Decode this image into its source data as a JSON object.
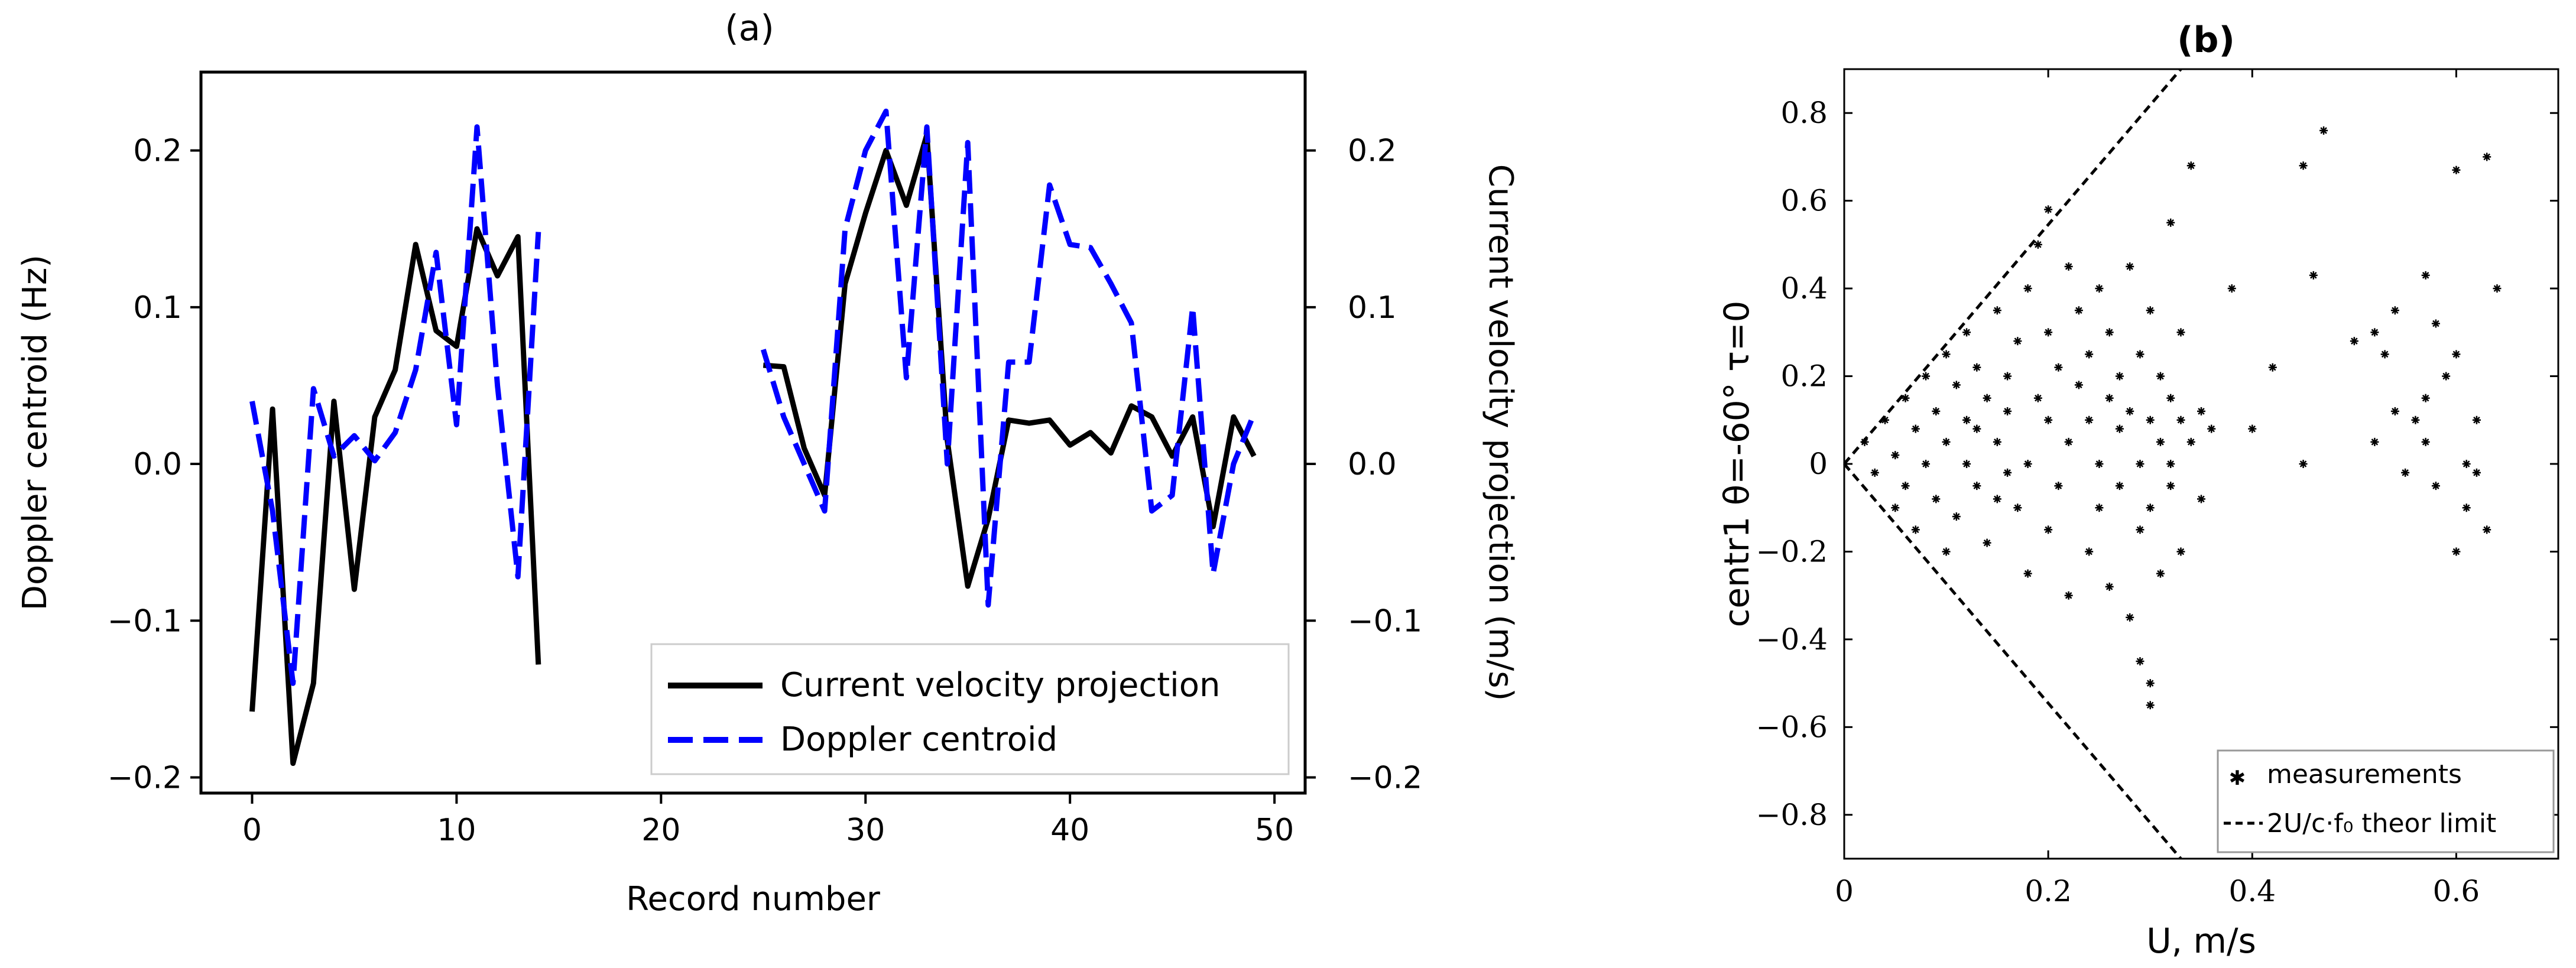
{
  "chart_data": [
    {
      "type": "line",
      "title": "(a)",
      "xlabel": "Record number",
      "ylabel": "Doppler centroid (Hz)",
      "ylabel_right": "Current velocity projection (m/s)",
      "xlim": [
        -2.5,
        51.5
      ],
      "ylim": [
        -0.21,
        0.25
      ],
      "ylim_right": [
        -0.21,
        0.25
      ],
      "x_ticks": [
        0,
        10,
        20,
        30,
        40,
        50
      ],
      "x_tick_labels": [
        "0",
        "10",
        "20",
        "30",
        "40",
        "50"
      ],
      "y_ticks": [
        -0.2,
        -0.1,
        0.0,
        0.1,
        0.2
      ],
      "y_tick_labels": [
        "−0.2",
        "−0.1",
        "0.0",
        "0.1",
        "0.2"
      ],
      "y_tick_labels_right": [
        "−0.2",
        "−0.1",
        "0.0",
        "0.1",
        "0.2"
      ],
      "grid": false,
      "legend_position": "lower-right",
      "series": [
        {
          "name": "Current velocity projection",
          "color": "#000000",
          "style": "solid",
          "segments": [
            {
              "x": [
                0,
                1,
                2,
                3,
                4,
                5,
                6,
                7,
                8,
                9,
                10,
                11,
                12,
                13,
                14
              ],
              "y": [
                -0.158,
                0.035,
                -0.191,
                -0.14,
                0.04,
                -0.08,
                0.03,
                0.06,
                0.14,
                0.085,
                0.075,
                0.15,
                0.12,
                0.145,
                -0.128
              ]
            },
            {
              "x": [
                25,
                26,
                27,
                28,
                29,
                30,
                31,
                32,
                33,
                34,
                35,
                36,
                37,
                38,
                39,
                40,
                41,
                42,
                43,
                44,
                45,
                46,
                47,
                48,
                49
              ],
              "y": [
                0.063,
                0.062,
                0.01,
                -0.02,
                0.115,
                0.16,
                0.2,
                0.165,
                0.21,
                0.015,
                -0.078,
                -0.035,
                0.028,
                0.026,
                0.028,
                0.012,
                0.02,
                0.007,
                0.037,
                0.03,
                0.005,
                0.03,
                -0.04,
                0.03,
                0.005
              ]
            }
          ]
        },
        {
          "name": "Doppler centroid",
          "color": "#0000ff",
          "style": "dashed",
          "segments": [
            {
              "x": [
                0,
                1,
                2,
                3,
                4,
                5,
                6,
                7,
                8,
                9,
                10,
                11,
                12,
                13,
                14
              ],
              "y": [
                0.04,
                -0.03,
                -0.14,
                0.048,
                0.005,
                0.018,
                0.002,
                0.02,
                0.06,
                0.135,
                0.025,
                0.215,
                0.05,
                -0.072,
                0.148
              ]
            },
            {
              "x": [
                25,
                26,
                27,
                28,
                29,
                30,
                31,
                32,
                33,
                34,
                35,
                36,
                37,
                38,
                39,
                40,
                41,
                42,
                43,
                44,
                45,
                46,
                47,
                48,
                49
              ],
              "y": [
                0.073,
                0.03,
                0.0,
                -0.03,
                0.15,
                0.2,
                0.225,
                0.055,
                0.215,
                0.0,
                0.205,
                -0.09,
                0.065,
                0.065,
                0.178,
                0.14,
                0.138,
                0.115,
                0.09,
                -0.03,
                -0.02,
                0.1,
                -0.07,
                0.0,
                0.032
              ]
            }
          ]
        }
      ]
    },
    {
      "type": "scatter",
      "title": "(b)",
      "xlabel": "U, m/s",
      "ylabel": "centr1 θ=-60° τ=0",
      "xlim": [
        0,
        0.7
      ],
      "ylim": [
        -0.9,
        0.9
      ],
      "x_ticks": [
        0,
        0.2,
        0.4,
        0.6
      ],
      "x_tick_labels": [
        "0",
        "0.2",
        "0.4",
        "0.6"
      ],
      "y_ticks": [
        -0.8,
        -0.6,
        -0.4,
        -0.2,
        0,
        0.2,
        0.4,
        0.6,
        0.8
      ],
      "y_tick_labels": [
        "−0.8",
        "−0.6",
        "−0.4",
        "−0.2",
        "0",
        "0.2",
        "0.4",
        "0.6",
        "0.8"
      ],
      "grid": false,
      "legend_position": "lower-right",
      "series": [
        {
          "name": "measurements",
          "color": "#000000",
          "marker": "star",
          "points": [
            [
              0.02,
              0.05
            ],
            [
              0.03,
              -0.02
            ],
            [
              0.04,
              0.1
            ],
            [
              0.05,
              -0.1
            ],
            [
              0.05,
              0.02
            ],
            [
              0.06,
              0.15
            ],
            [
              0.06,
              -0.05
            ],
            [
              0.07,
              0.08
            ],
            [
              0.07,
              -0.15
            ],
            [
              0.08,
              0.2
            ],
            [
              0.08,
              0.0
            ],
            [
              0.09,
              -0.08
            ],
            [
              0.09,
              0.12
            ],
            [
              0.1,
              0.25
            ],
            [
              0.1,
              -0.2
            ],
            [
              0.1,
              0.05
            ],
            [
              0.11,
              0.18
            ],
            [
              0.11,
              -0.12
            ],
            [
              0.12,
              0.3
            ],
            [
              0.12,
              0.0
            ],
            [
              0.12,
              0.1
            ],
            [
              0.13,
              -0.05
            ],
            [
              0.13,
              0.22
            ],
            [
              0.14,
              0.15
            ],
            [
              0.14,
              -0.18
            ],
            [
              0.15,
              0.35
            ],
            [
              0.15,
              0.05
            ],
            [
              0.15,
              -0.08
            ],
            [
              0.16,
              0.2
            ],
            [
              0.16,
              0.12
            ],
            [
              0.17,
              -0.1
            ],
            [
              0.17,
              0.28
            ],
            [
              0.18,
              0.0
            ],
            [
              0.18,
              0.4
            ],
            [
              0.18,
              -0.25
            ],
            [
              0.19,
              0.15
            ],
            [
              0.19,
              0.5
            ],
            [
              0.2,
              0.1
            ],
            [
              0.2,
              -0.15
            ],
            [
              0.2,
              0.3
            ],
            [
              0.2,
              0.58
            ],
            [
              0.21,
              0.22
            ],
            [
              0.21,
              -0.05
            ],
            [
              0.22,
              0.45
            ],
            [
              0.22,
              0.05
            ],
            [
              0.22,
              -0.3
            ],
            [
              0.23,
              0.18
            ],
            [
              0.23,
              0.35
            ],
            [
              0.24,
              0.1
            ],
            [
              0.24,
              -0.2
            ],
            [
              0.24,
              0.25
            ],
            [
              0.25,
              0.0
            ],
            [
              0.25,
              0.4
            ],
            [
              0.25,
              -0.1
            ],
            [
              0.26,
              0.15
            ],
            [
              0.26,
              0.3
            ],
            [
              0.26,
              -0.28
            ],
            [
              0.27,
              0.08
            ],
            [
              0.27,
              0.2
            ],
            [
              0.27,
              -0.05
            ],
            [
              0.28,
              0.45
            ],
            [
              0.28,
              -0.35
            ],
            [
              0.28,
              0.12
            ],
            [
              0.29,
              0.0
            ],
            [
              0.29,
              -0.15
            ],
            [
              0.29,
              0.25
            ],
            [
              0.29,
              -0.45
            ],
            [
              0.3,
              0.1
            ],
            [
              0.3,
              -0.1
            ],
            [
              0.3,
              0.35
            ],
            [
              0.3,
              -0.5
            ],
            [
              0.3,
              -0.55
            ],
            [
              0.31,
              0.05
            ],
            [
              0.31,
              0.2
            ],
            [
              0.31,
              -0.25
            ],
            [
              0.32,
              0.15
            ],
            [
              0.32,
              0.0
            ],
            [
              0.32,
              0.55
            ],
            [
              0.32,
              -0.05
            ],
            [
              0.33,
              0.1
            ],
            [
              0.33,
              0.3
            ],
            [
              0.33,
              -0.2
            ],
            [
              0.34,
              0.05
            ],
            [
              0.34,
              0.68
            ],
            [
              0.35,
              0.12
            ],
            [
              0.35,
              -0.08
            ],
            [
              0.36,
              0.08
            ],
            [
              0.38,
              0.4
            ],
            [
              0.4,
              0.08
            ],
            [
              0.42,
              0.22
            ],
            [
              0.45,
              0.68
            ],
            [
              0.45,
              0.0
            ],
            [
              0.46,
              0.43
            ],
            [
              0.47,
              0.76
            ],
            [
              0.5,
              0.28
            ],
            [
              0.52,
              0.3
            ],
            [
              0.52,
              0.05
            ],
            [
              0.53,
              0.25
            ],
            [
              0.54,
              0.12
            ],
            [
              0.54,
              0.35
            ],
            [
              0.56,
              0.1
            ],
            [
              0.57,
              0.05
            ],
            [
              0.57,
              0.43
            ],
            [
              0.58,
              -0.05
            ],
            [
              0.58,
              0.32
            ],
            [
              0.59,
              0.2
            ],
            [
              0.6,
              0.67
            ],
            [
              0.6,
              0.25
            ],
            [
              0.6,
              -0.2
            ],
            [
              0.61,
              0.0
            ],
            [
              0.62,
              0.1
            ],
            [
              0.63,
              0.7
            ],
            [
              0.63,
              -0.15
            ],
            [
              0.64,
              0.4
            ],
            [
              0.62,
              -0.02
            ],
            [
              0.61,
              -0.1
            ],
            [
              0.55,
              -0.02
            ],
            [
              0.57,
              0.15
            ],
            [
              0.13,
              0.08
            ],
            [
              0.16,
              -0.02
            ]
          ]
        },
        {
          "name": "2U/c·f₀ theor limit",
          "color": "#000000",
          "style": "dashed",
          "lines": [
            {
              "x": [
                0,
                0.33
              ],
              "y": [
                0,
                0.9
              ]
            },
            {
              "x": [
                0,
                0.33
              ],
              "y": [
                0,
                -0.9
              ]
            }
          ]
        }
      ]
    }
  ]
}
